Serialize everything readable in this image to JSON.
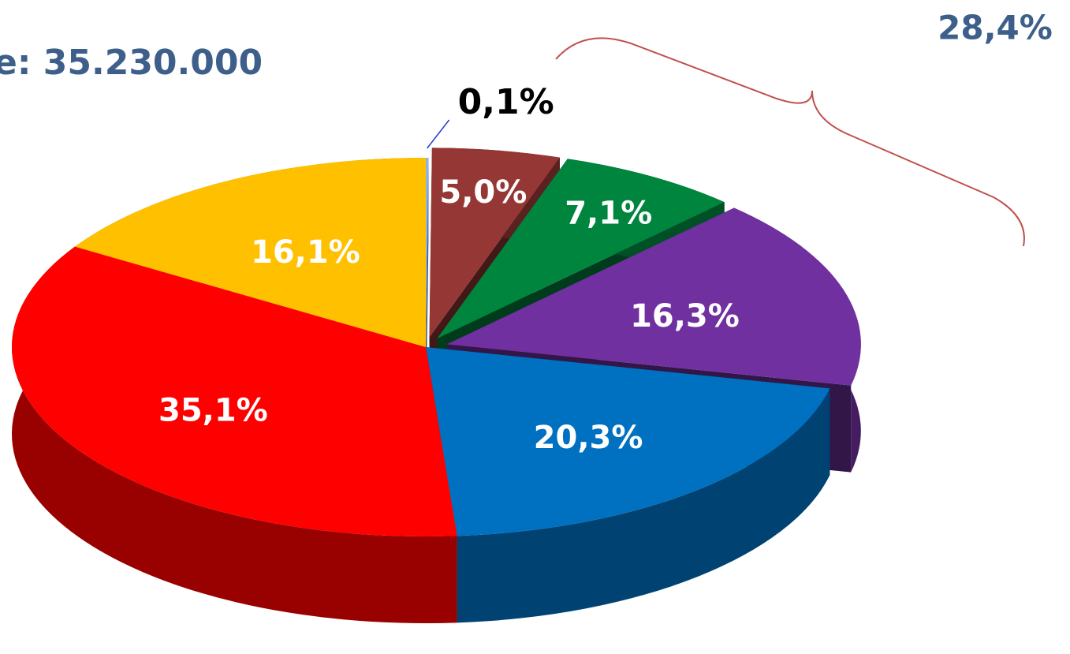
{
  "chart_data": {
    "type": "pie",
    "title": "e: 35.230.000",
    "values": [
      0.1,
      5.0,
      7.1,
      16.3,
      20.3,
      35.1,
      16.1
    ],
    "value_labels": [
      "0,1%",
      "5,0%",
      "7,1%",
      "16,3%",
      "20,3%",
      "35,1%",
      "16,1%"
    ],
    "colors": [
      "#8eb4e3",
      "#953735",
      "#00853f",
      "#7030a0",
      "#0070c0",
      "#ff0000",
      "#ffc000"
    ],
    "annotation": "28,4%"
  }
}
